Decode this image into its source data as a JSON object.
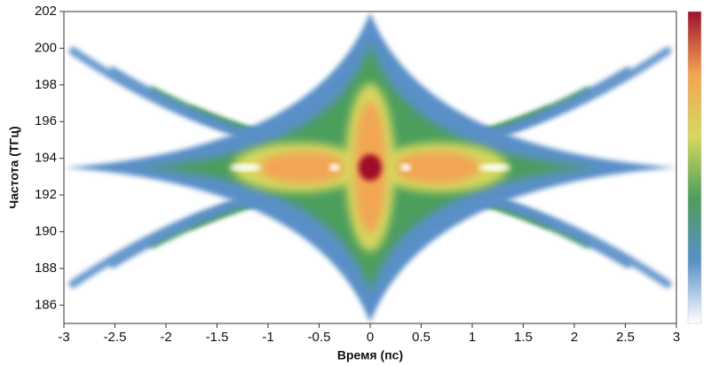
{
  "chart_data": {
    "type": "heatmap",
    "xlabel": "Время (пс)",
    "ylabel": "Частота (ТГц)",
    "xlim": [
      -3,
      3
    ],
    "xticks": [
      -3,
      -2.5,
      -2,
      -1.5,
      -1,
      -0.5,
      0,
      0.5,
      1,
      1.5,
      2,
      2.5,
      3
    ],
    "ylim": [
      185,
      202
    ],
    "yticks": [
      186,
      188,
      190,
      192,
      194,
      196,
      198,
      200,
      202
    ],
    "colorscale": [
      "#ffffff",
      "#5a8fc8",
      "#4c9e5c",
      "#d6d85e",
      "#f2a552",
      "#a0112c"
    ]
  }
}
